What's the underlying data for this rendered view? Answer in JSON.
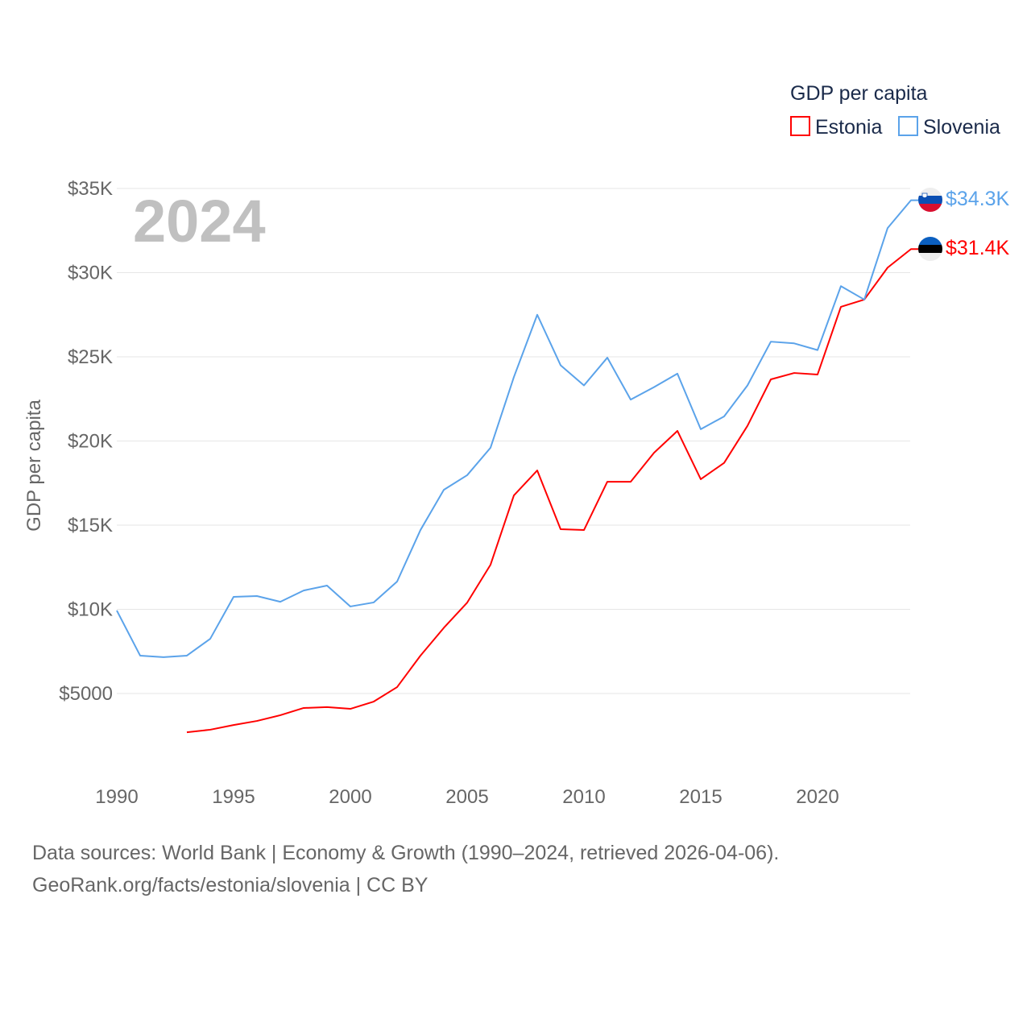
{
  "chart_data": {
    "type": "line",
    "title": "",
    "year_label": "2024",
    "xlabel": "",
    "ylabel": "GDP per capita",
    "xlim": [
      1990,
      2024
    ],
    "ylim": [
      0,
      35000
    ],
    "x_ticks": [
      1990,
      1995,
      2000,
      2005,
      2010,
      2015,
      2020
    ],
    "x_tick_labels": [
      "1990",
      "1995",
      "2000",
      "2005",
      "2010",
      "2015",
      "2020"
    ],
    "y_ticks": [
      5000,
      10000,
      15000,
      20000,
      25000,
      30000,
      35000
    ],
    "y_tick_labels": [
      "$5000",
      "$10K",
      "$15K",
      "$20K",
      "$25K",
      "$30K",
      "$35K"
    ],
    "grid": true,
    "legend": {
      "title": "GDP per capita",
      "placement": "top-right"
    },
    "series": [
      {
        "name": "Estonia",
        "color": "#ff0000",
        "end_label": "$31.4K",
        "flag": "estonia-flag",
        "x": [
          1993,
          1994,
          1995,
          1996,
          1997,
          1998,
          1999,
          2000,
          2001,
          2002,
          2003,
          2004,
          2005,
          2006,
          2007,
          2008,
          2009,
          2010,
          2011,
          2012,
          2013,
          2014,
          2015,
          2016,
          2017,
          2018,
          2019,
          2020,
          2021,
          2022,
          2023,
          2024
        ],
        "values": [
          2700,
          2850,
          3130,
          3370,
          3710,
          4140,
          4190,
          4090,
          4520,
          5380,
          7250,
          8900,
          10400,
          12650,
          16770,
          18250,
          14760,
          14710,
          17580,
          17580,
          19300,
          20600,
          17730,
          18700,
          20900,
          23660,
          24040,
          23950,
          27970,
          28400,
          30300,
          31400
        ]
      },
      {
        "name": "Slovenia",
        "color": "#5ba3ea",
        "end_label": "$34.3K",
        "flag": "slovenia-flag",
        "x": [
          1990,
          1991,
          1992,
          1993,
          1994,
          1995,
          1996,
          1997,
          1998,
          1999,
          2000,
          2001,
          2002,
          2003,
          2004,
          2005,
          2006,
          2007,
          2008,
          2009,
          2010,
          2011,
          2012,
          2013,
          2014,
          2015,
          2016,
          2017,
          2018,
          2019,
          2020,
          2021,
          2022,
          2023,
          2024
        ],
        "values": [
          9930,
          7250,
          7160,
          7250,
          8250,
          10740,
          10790,
          10450,
          11120,
          11410,
          10170,
          10410,
          11650,
          14710,
          17100,
          17970,
          19600,
          23800,
          27500,
          24500,
          23300,
          24950,
          22460,
          23200,
          24000,
          20700,
          21460,
          23300,
          25900,
          25800,
          25400,
          29200,
          28400,
          32650,
          34300
        ]
      }
    ]
  },
  "footer": {
    "line1": "Data sources: World Bank | Economy & Growth (1990–2024, retrieved 2026-04-06).",
    "line2": "GeoRank.org/facts/estonia/slovenia | CC BY"
  }
}
